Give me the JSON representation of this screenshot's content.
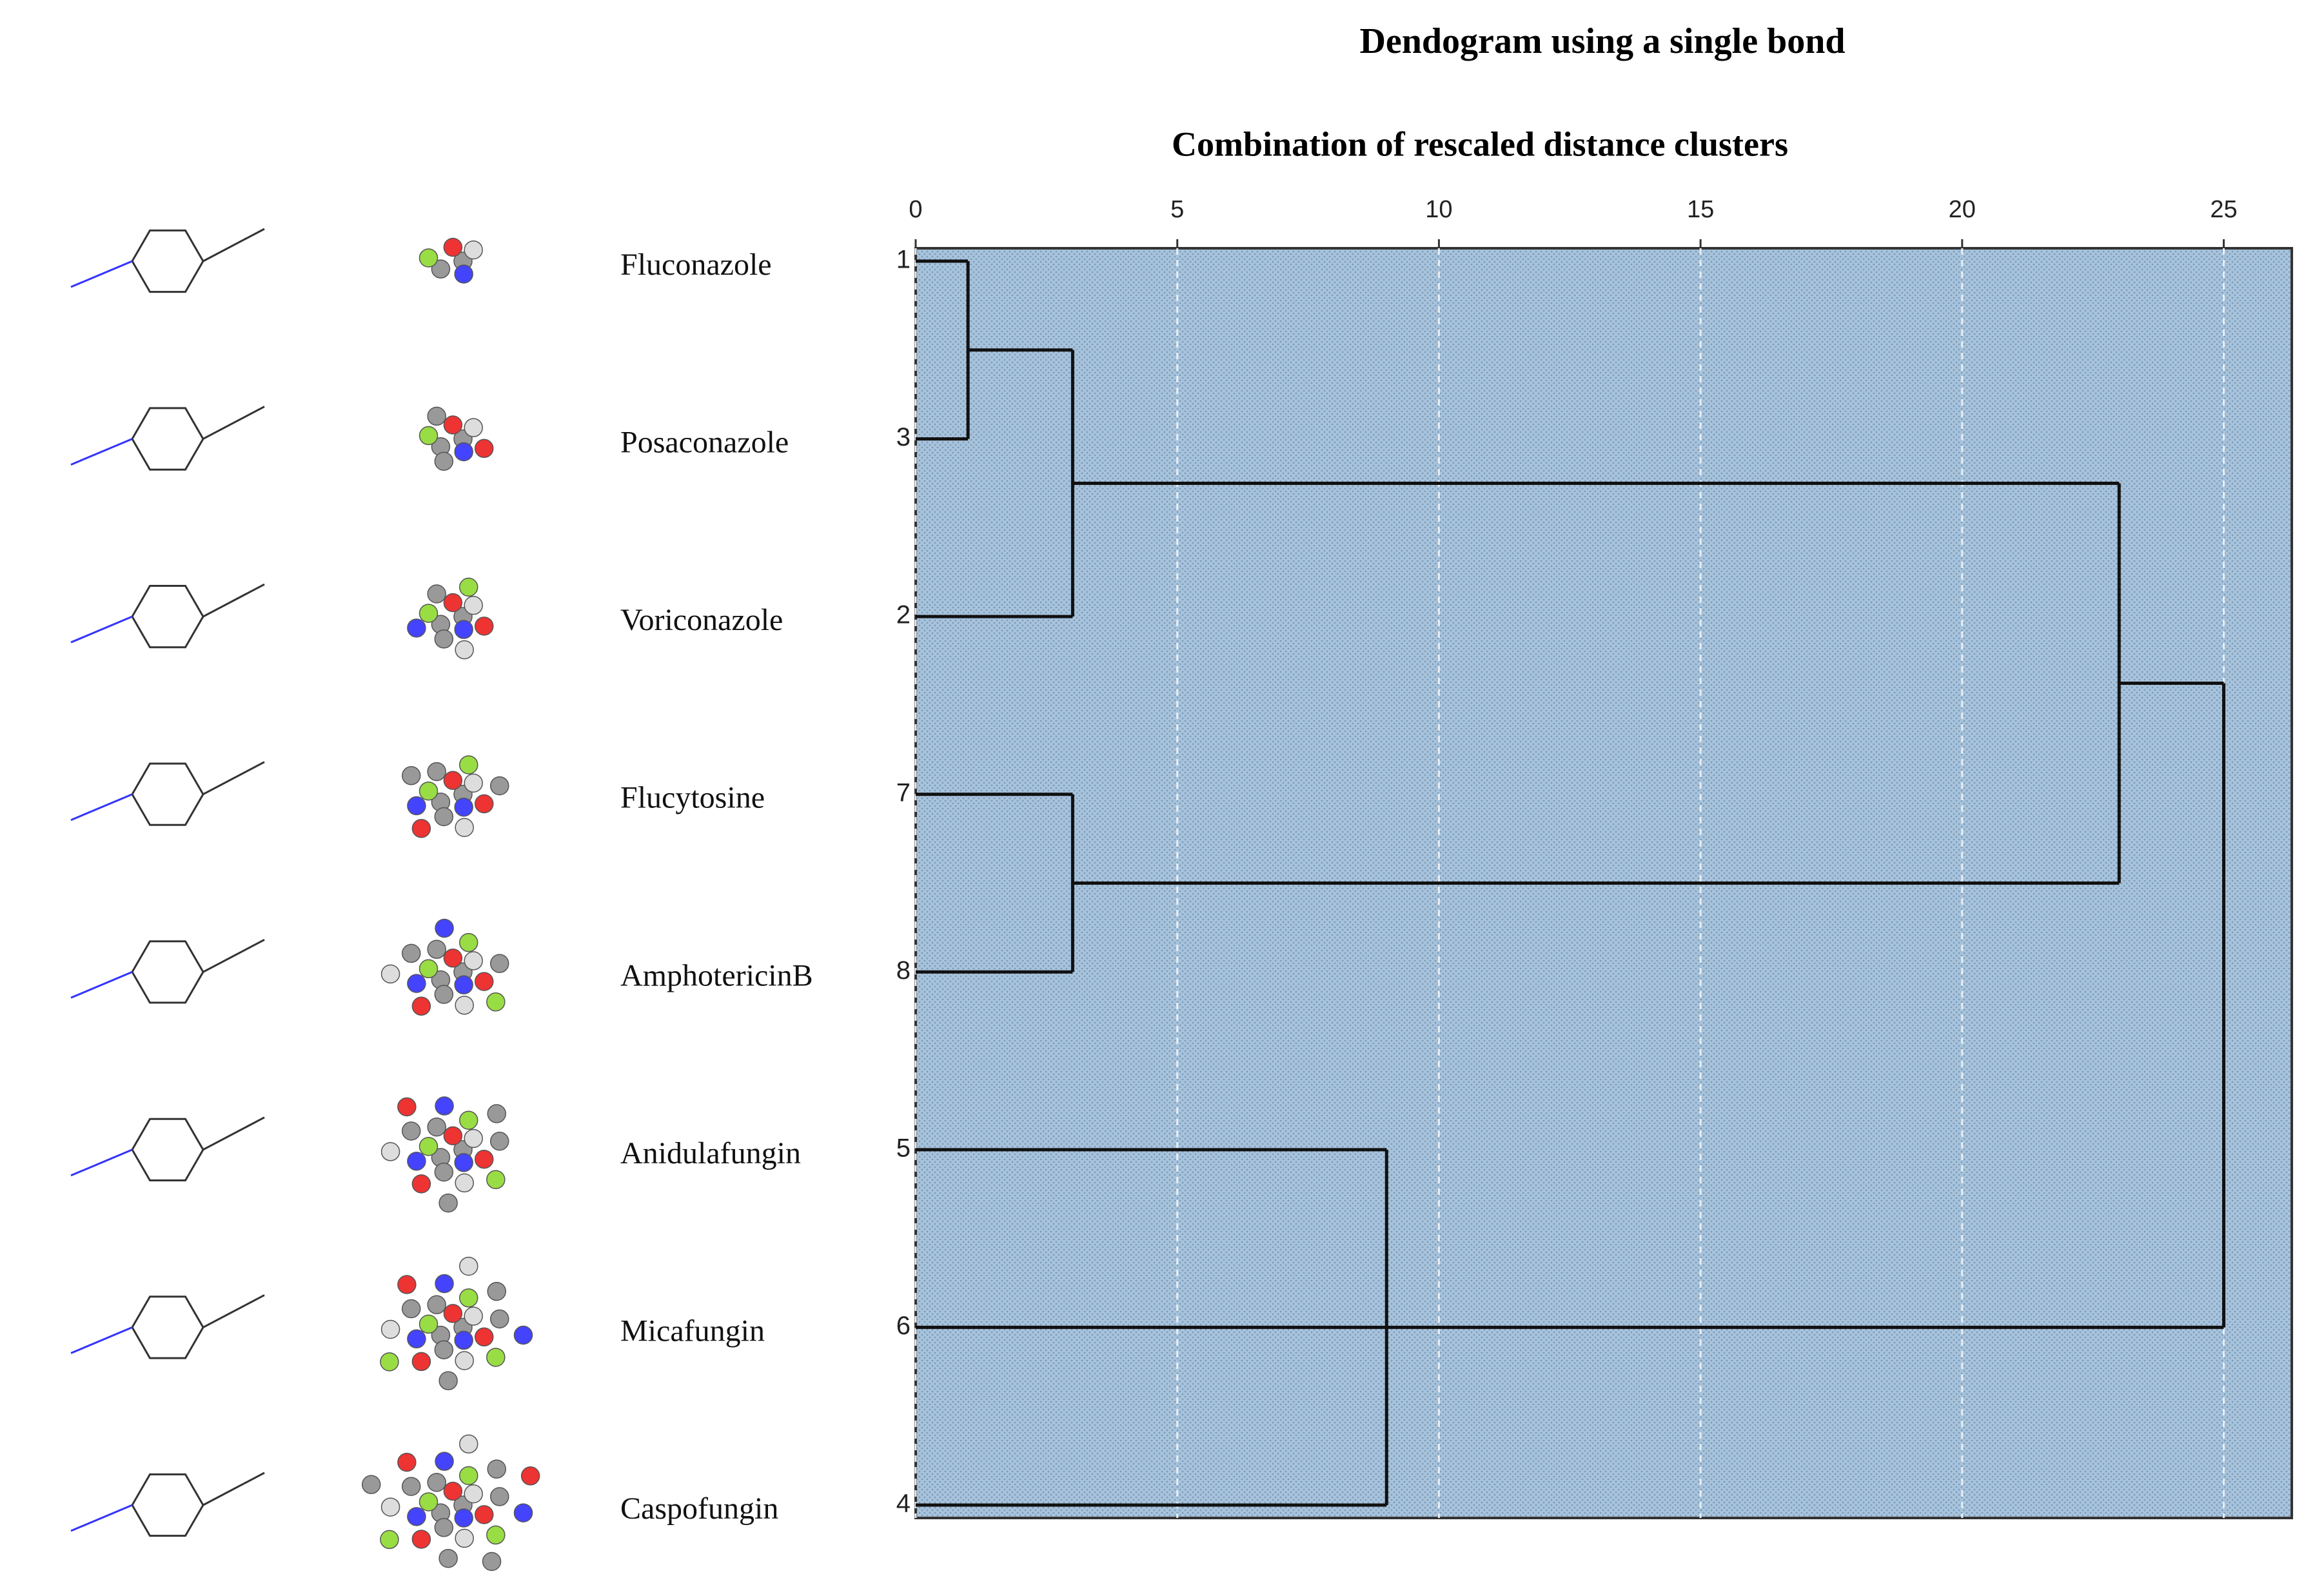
{
  "chart_data": {
    "type": "dendrogram",
    "title": "Dendogram using a single bond",
    "x_label": "Combination of rescaled distance clusters",
    "xlim": [
      0,
      26.3
    ],
    "xticks": [
      0,
      5,
      10,
      15,
      20,
      25
    ],
    "grid": true,
    "color": "#a8c3dc",
    "leaves": [
      "1",
      "3",
      "2",
      "7",
      "8",
      "5",
      "6",
      "4"
    ],
    "names": [
      "Fluconazole",
      "Posaconazole",
      "Voriconazole",
      "Flucytosine",
      "AmphotericinB",
      "Anidulafungin",
      "Micafungin",
      "Caspofungin"
    ],
    "merges": [
      {
        "join": [
          0,
          1
        ],
        "distance": 1
      },
      {
        "join": [
          8,
          2
        ],
        "distance": 3
      },
      {
        "join": [
          3,
          4
        ],
        "distance": 3
      },
      {
        "join": [
          9,
          10
        ],
        "distance": 23
      },
      {
        "join": [
          5,
          7
        ],
        "distance": 9
      },
      {
        "join": [
          12,
          6
        ],
        "distance": 9
      },
      {
        "join": [
          11,
          13
        ],
        "distance": 25
      }
    ]
  }
}
